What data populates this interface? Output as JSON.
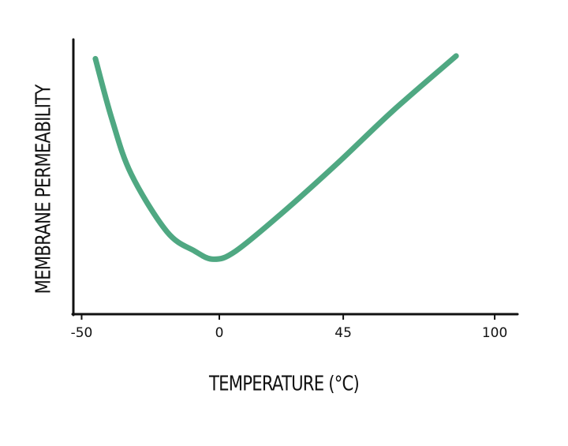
{
  "chart_data": {
    "type": "line",
    "xlabel": "TEMPERATURE (°C)",
    "ylabel": "MEMBRANE PERMEABILITY",
    "x": [
      -45,
      -39,
      -32,
      -19,
      -9,
      -2,
      6,
      23,
      43,
      63,
      86
    ],
    "series": [
      {
        "color": "#4fa882",
        "values": [
          93,
          71,
          51,
          30,
          23,
          20,
          23,
          37,
          55,
          74,
          94
        ]
      }
    ],
    "xlim": [
      -53,
      108
    ],
    "ylim": [
      0,
      100
    ],
    "xticks": [
      -50,
      0,
      45,
      100
    ]
  }
}
